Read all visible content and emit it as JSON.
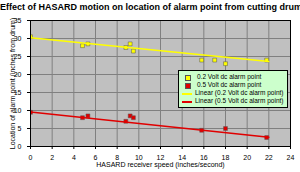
{
  "chart_data": {
    "type": "scatter",
    "title": "Effect of HASARD motion on location of alarm point from cutting drum",
    "x_label": "HASARD receiver speed (inches/second)",
    "y_label": "Location of alarm point (inches from drum)",
    "xlim": [
      0,
      24
    ],
    "xticks": [
      0,
      2,
      4,
      6,
      8,
      10,
      12,
      14,
      16,
      18,
      20,
      22,
      24
    ],
    "ylim": [
      0,
      35
    ],
    "yticks": [
      0,
      5,
      10,
      15,
      20,
      25,
      30,
      35
    ],
    "grid": true,
    "legend": "right",
    "series": [
      {
        "name": "0.2 Volt dc alarm point",
        "type": "scatter",
        "marker": "square",
        "color": "#ffff00",
        "x": [
          0,
          4.8,
          5.3,
          8.8,
          9.2,
          9.5,
          15.8,
          17,
          18,
          21.8
        ],
        "values": [
          30.5,
          28,
          28.5,
          27.5,
          28.5,
          26.5,
          24,
          24,
          23,
          24
        ]
      },
      {
        "name": "0.5 Volt dc alarm point",
        "type": "scatter",
        "marker": "square",
        "color": "#e00000",
        "x": [
          0,
          4.8,
          5.3,
          8.8,
          9.2,
          9.5,
          15.8,
          18,
          21.8
        ],
        "values": [
          9.5,
          8,
          8.5,
          7,
          8.5,
          8,
          4.5,
          5,
          2.5
        ]
      },
      {
        "name": "Linear (0.2 Volt dc alarm point)",
        "type": "line",
        "color": "#ffff00",
        "x": [
          0,
          22
        ],
        "values": [
          30.2,
          23.6
        ]
      },
      {
        "name": "Linear (0.5 Volt dc alarm point)",
        "type": "line",
        "color": "#e00000",
        "x": [
          0,
          22
        ],
        "values": [
          9.6,
          2.6
        ]
      }
    ]
  }
}
